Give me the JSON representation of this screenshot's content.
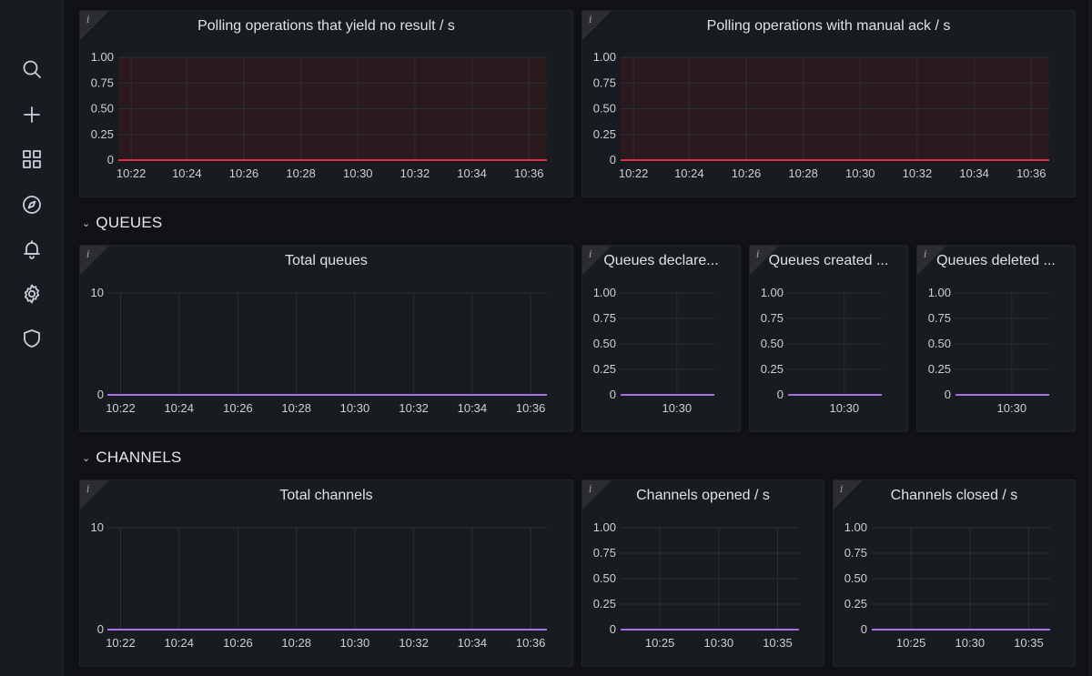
{
  "sidebar": {
    "items": [
      {
        "icon": "search-icon"
      },
      {
        "icon": "plus-icon"
      },
      {
        "icon": "dashboards-icon"
      },
      {
        "icon": "compass-icon"
      },
      {
        "icon": "bell-icon"
      },
      {
        "icon": "gear-icon"
      },
      {
        "icon": "shield-icon"
      }
    ]
  },
  "sections": {
    "queues": "QUEUES",
    "channels": "CHANNELS"
  },
  "info_glyph": "i",
  "colors": {
    "bg": "#111217",
    "panel": "#181b1f",
    "red_line": "#e02f44",
    "red_fill": "#2a1a1d",
    "purple_line": "#a870e0",
    "grid": "#2c2f35"
  },
  "panels": {
    "polling_no_result": {
      "title": "Polling operations that yield no result / s"
    },
    "polling_manual_ack": {
      "title": "Polling operations with manual ack / s"
    },
    "total_queues": {
      "title": "Total queues"
    },
    "queues_declared": {
      "title": "Queues declare..."
    },
    "queues_created": {
      "title": "Queues created ..."
    },
    "queues_deleted": {
      "title": "Queues deleted ..."
    },
    "total_channels": {
      "title": "Total channels"
    },
    "channels_opened": {
      "title": "Channels opened / s"
    },
    "channels_closed": {
      "title": "Channels closed / s"
    }
  },
  "chart_data": [
    {
      "id": "polling_no_result",
      "type": "area",
      "title": "Polling operations that yield no result / s",
      "x": [
        "10:22",
        "10:24",
        "10:26",
        "10:28",
        "10:30",
        "10:32",
        "10:34",
        "10:36"
      ],
      "yticks": [
        "0",
        "0.25",
        "0.50",
        "0.75",
        "1.00"
      ],
      "ylim": [
        0,
        1
      ],
      "series": [
        {
          "values": [
            0,
            0,
            0,
            0,
            0,
            0,
            0,
            0
          ]
        }
      ],
      "threshold_fill": true,
      "color": "#e02f44"
    },
    {
      "id": "polling_manual_ack",
      "type": "area",
      "title": "Polling operations with manual ack / s",
      "x": [
        "10:22",
        "10:24",
        "10:26",
        "10:28",
        "10:30",
        "10:32",
        "10:34",
        "10:36"
      ],
      "yticks": [
        "0",
        "0.25",
        "0.50",
        "0.75",
        "1.00"
      ],
      "ylim": [
        0,
        1
      ],
      "series": [
        {
          "values": [
            0,
            0,
            0,
            0,
            0,
            0,
            0,
            0
          ]
        }
      ],
      "threshold_fill": true,
      "color": "#e02f44"
    },
    {
      "id": "total_queues",
      "type": "line",
      "title": "Total queues",
      "x": [
        "10:22",
        "10:24",
        "10:26",
        "10:28",
        "10:30",
        "10:32",
        "10:34",
        "10:36"
      ],
      "yticks": [
        "0",
        "10"
      ],
      "ylim": [
        0,
        10
      ],
      "series": [
        {
          "values": [
            0,
            0,
            0,
            0,
            0,
            0,
            0,
            0
          ]
        }
      ],
      "color": "#a870e0"
    },
    {
      "id": "queues_declared",
      "type": "line",
      "title": "Queues declare...",
      "x": [
        "10:30"
      ],
      "yticks": [
        "0",
        "0.25",
        "0.50",
        "0.75",
        "1.00"
      ],
      "ylim": [
        0,
        1
      ],
      "series": [
        {
          "values": [
            0
          ]
        }
      ],
      "color": "#a870e0"
    },
    {
      "id": "queues_created",
      "type": "line",
      "title": "Queues created ...",
      "x": [
        "10:30"
      ],
      "yticks": [
        "0",
        "0.25",
        "0.50",
        "0.75",
        "1.00"
      ],
      "ylim": [
        0,
        1
      ],
      "series": [
        {
          "values": [
            0
          ]
        }
      ],
      "color": "#a870e0"
    },
    {
      "id": "queues_deleted",
      "type": "line",
      "title": "Queues deleted ...",
      "x": [
        "10:30"
      ],
      "yticks": [
        "0",
        "0.25",
        "0.50",
        "0.75",
        "1.00"
      ],
      "ylim": [
        0,
        1
      ],
      "series": [
        {
          "values": [
            0
          ]
        }
      ],
      "color": "#a870e0"
    },
    {
      "id": "total_channels",
      "type": "line",
      "title": "Total channels",
      "x": [
        "10:22",
        "10:24",
        "10:26",
        "10:28",
        "10:30",
        "10:32",
        "10:34",
        "10:36"
      ],
      "yticks": [
        "0",
        "10"
      ],
      "ylim": [
        0,
        10
      ],
      "series": [
        {
          "values": [
            0,
            0,
            0,
            0,
            0,
            0,
            0,
            0
          ]
        }
      ],
      "color": "#a870e0"
    },
    {
      "id": "channels_opened",
      "type": "line",
      "title": "Channels opened / s",
      "x": [
        "10:25",
        "10:30",
        "10:35"
      ],
      "yticks": [
        "0",
        "0.25",
        "0.50",
        "0.75",
        "1.00"
      ],
      "ylim": [
        0,
        1
      ],
      "series": [
        {
          "values": [
            0,
            0,
            0
          ]
        }
      ],
      "color": "#a870e0"
    },
    {
      "id": "channels_closed",
      "type": "line",
      "title": "Channels closed / s",
      "x": [
        "10:25",
        "10:30",
        "10:35"
      ],
      "yticks": [
        "0",
        "0.25",
        "0.50",
        "0.75",
        "1.00"
      ],
      "ylim": [
        0,
        1
      ],
      "series": [
        {
          "values": [
            0,
            0,
            0
          ]
        }
      ],
      "color": "#a870e0"
    }
  ]
}
